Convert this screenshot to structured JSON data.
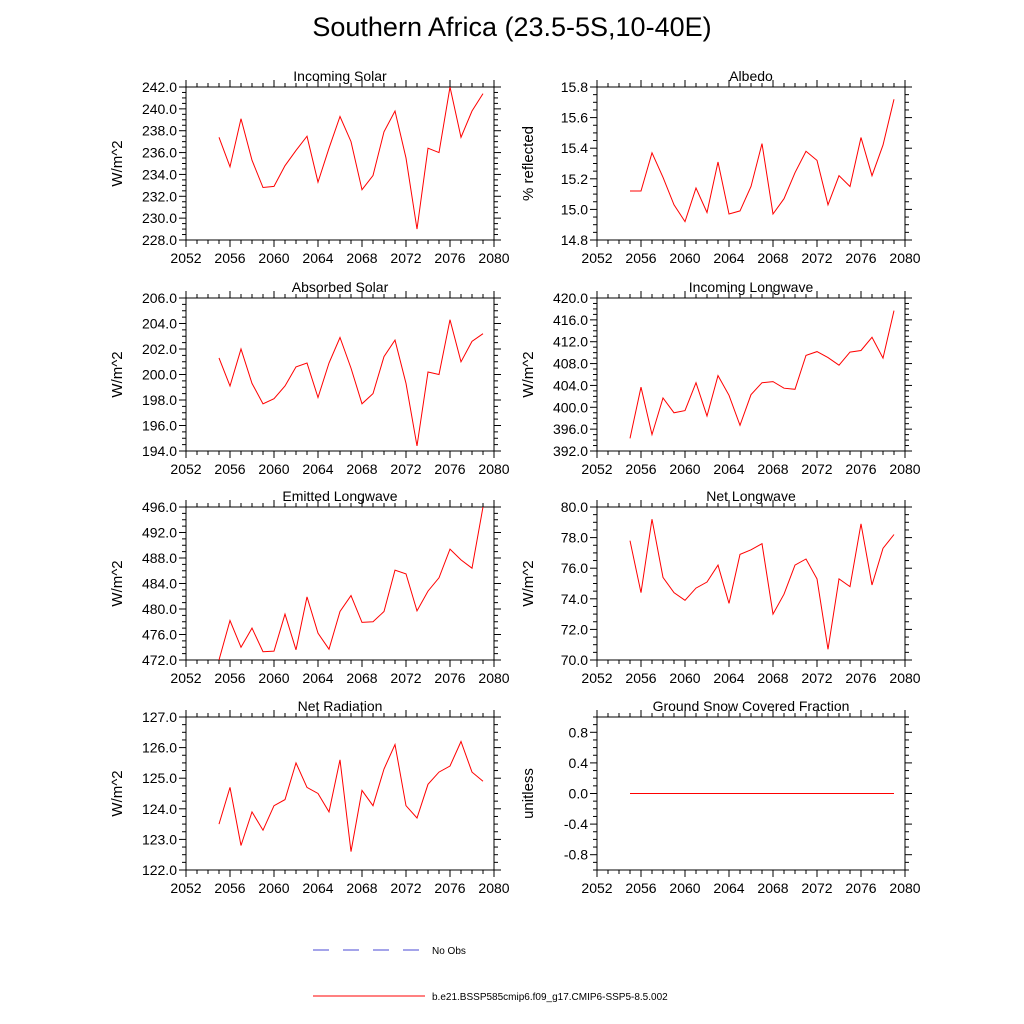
{
  "figure": {
    "title": "Southern Africa (23.5-5S,10-40E)"
  },
  "legend": [
    {
      "label": "No Obs",
      "style": "dashed",
      "color": "#4a4ad6"
    },
    {
      "label": "b.e21.BSSP585cmip6.f09_g17.CMIP6-SSP5-8.5.002",
      "style": "solid",
      "color": "#ff0000"
    }
  ],
  "chart_data": [
    {
      "type": "line",
      "title": "Incoming Solar",
      "ylabel": "W/m^2",
      "xlabel": "",
      "xlim": [
        2052,
        2080
      ],
      "ylim": [
        228,
        242
      ],
      "xticks": [
        "2052",
        "2056",
        "2060",
        "2064",
        "2068",
        "2072",
        "2076",
        "2080"
      ],
      "yticks": [
        "228.0",
        "230.0",
        "232.0",
        "234.0",
        "236.0",
        "238.0",
        "240.0",
        "242.0"
      ],
      "x": [
        2055,
        2056,
        2057,
        2058,
        2059,
        2060,
        2061,
        2062,
        2063,
        2064,
        2065,
        2066,
        2067,
        2068,
        2069,
        2070,
        2071,
        2072,
        2073,
        2074,
        2075,
        2076,
        2077,
        2078,
        2079
      ],
      "series": [
        {
          "values": [
            237.4,
            234.7,
            239.1,
            235.3,
            232.8,
            232.9,
            234.8,
            236.2,
            237.5,
            233.3,
            236.4,
            239.3,
            237.0,
            232.6,
            233.9,
            237.9,
            239.8,
            235.5,
            229.0,
            236.4,
            236.0,
            242.0,
            237.4,
            239.8,
            241.4
          ],
          "color": "#ff0000"
        }
      ]
    },
    {
      "type": "line",
      "title": "Albedo",
      "ylabel": "% reflected",
      "xlabel": "",
      "xlim": [
        2052,
        2080
      ],
      "ylim": [
        14.8,
        15.8
      ],
      "xticks": [
        "2052",
        "2056",
        "2060",
        "2064",
        "2068",
        "2072",
        "2076",
        "2080"
      ],
      "yticks": [
        "14.8",
        "15.0",
        "15.2",
        "15.4",
        "15.6",
        "15.8"
      ],
      "x": [
        2055,
        2056,
        2057,
        2058,
        2059,
        2060,
        2061,
        2062,
        2063,
        2064,
        2065,
        2066,
        2067,
        2068,
        2069,
        2070,
        2071,
        2072,
        2073,
        2074,
        2075,
        2076,
        2077,
        2078,
        2079
      ],
      "series": [
        {
          "values": [
            15.12,
            15.12,
            15.37,
            15.21,
            15.03,
            14.92,
            15.14,
            14.98,
            15.31,
            14.97,
            14.99,
            15.15,
            15.43,
            14.97,
            15.07,
            15.24,
            15.38,
            15.32,
            15.03,
            15.22,
            15.15,
            15.47,
            15.22,
            15.42,
            15.72
          ],
          "color": "#ff0000"
        }
      ]
    },
    {
      "type": "line",
      "title": "Absorbed Solar",
      "ylabel": "W/m^2",
      "xlabel": "",
      "xlim": [
        2052,
        2080
      ],
      "ylim": [
        194,
        206
      ],
      "xticks": [
        "2052",
        "2056",
        "2060",
        "2064",
        "2068",
        "2072",
        "2076",
        "2080"
      ],
      "yticks": [
        "194.0",
        "196.0",
        "198.0",
        "200.0",
        "202.0",
        "204.0",
        "206.0"
      ],
      "x": [
        2055,
        2056,
        2057,
        2058,
        2059,
        2060,
        2061,
        2062,
        2063,
        2064,
        2065,
        2066,
        2067,
        2068,
        2069,
        2070,
        2071,
        2072,
        2073,
        2074,
        2075,
        2076,
        2077,
        2078,
        2079
      ],
      "series": [
        {
          "values": [
            201.3,
            199.1,
            202.0,
            199.3,
            197.7,
            198.1,
            199.1,
            200.6,
            200.9,
            198.2,
            200.9,
            202.9,
            200.5,
            197.7,
            198.5,
            201.4,
            202.7,
            199.3,
            194.4,
            200.2,
            200.0,
            204.3,
            201.0,
            202.6,
            203.2
          ],
          "color": "#ff0000"
        }
      ]
    },
    {
      "type": "line",
      "title": "Incoming Longwave",
      "ylabel": "W/m^2",
      "xlabel": "",
      "xlim": [
        2052,
        2080
      ],
      "ylim": [
        392,
        420
      ],
      "xticks": [
        "2052",
        "2056",
        "2060",
        "2064",
        "2068",
        "2072",
        "2076",
        "2080"
      ],
      "yticks": [
        "392.0",
        "396.0",
        "400.0",
        "404.0",
        "408.0",
        "412.0",
        "416.0",
        "420.0"
      ],
      "x": [
        2055,
        2056,
        2057,
        2058,
        2059,
        2060,
        2061,
        2062,
        2063,
        2064,
        2065,
        2066,
        2067,
        2068,
        2069,
        2070,
        2071,
        2072,
        2073,
        2074,
        2075,
        2076,
        2077,
        2078,
        2079
      ],
      "series": [
        {
          "values": [
            394.3,
            403.7,
            395.0,
            401.7,
            399.0,
            399.4,
            404.5,
            398.4,
            405.8,
            402.2,
            396.7,
            402.3,
            404.5,
            404.7,
            403.5,
            403.3,
            409.5,
            410.2,
            409.1,
            407.7,
            410.1,
            410.4,
            412.8,
            409.0,
            417.7
          ],
          "color": "#ff0000"
        }
      ]
    },
    {
      "type": "line",
      "title": "Emitted Longwave",
      "ylabel": "W/m^2",
      "xlabel": "",
      "xlim": [
        2052,
        2080
      ],
      "ylim": [
        472,
        496
      ],
      "xticks": [
        "2052",
        "2056",
        "2060",
        "2064",
        "2068",
        "2072",
        "2076",
        "2080"
      ],
      "yticks": [
        "472.0",
        "476.0",
        "480.0",
        "484.0",
        "488.0",
        "492.0",
        "496.0"
      ],
      "x": [
        2055,
        2056,
        2057,
        2058,
        2059,
        2060,
        2061,
        2062,
        2063,
        2064,
        2065,
        2066,
        2067,
        2068,
        2069,
        2070,
        2071,
        2072,
        2073,
        2074,
        2075,
        2076,
        2077,
        2078,
        2079
      ],
      "series": [
        {
          "values": [
            472.0,
            478.2,
            474.0,
            477.0,
            473.3,
            473.4,
            479.2,
            473.6,
            481.9,
            476.2,
            473.7,
            479.6,
            482.1,
            477.9,
            478.0,
            479.6,
            486.1,
            485.5,
            479.7,
            482.8,
            484.9,
            489.4,
            487.7,
            486.4,
            496.0
          ],
          "color": "#ff0000"
        }
      ]
    },
    {
      "type": "line",
      "title": "Net Longwave",
      "ylabel": "W/m^2",
      "xlabel": "",
      "xlim": [
        2052,
        2080
      ],
      "ylim": [
        70,
        80
      ],
      "xticks": [
        "2052",
        "2056",
        "2060",
        "2064",
        "2068",
        "2072",
        "2076",
        "2080"
      ],
      "yticks": [
        "70.0",
        "72.0",
        "74.0",
        "76.0",
        "78.0",
        "80.0"
      ],
      "x": [
        2055,
        2056,
        2057,
        2058,
        2059,
        2060,
        2061,
        2062,
        2063,
        2064,
        2065,
        2066,
        2067,
        2068,
        2069,
        2070,
        2071,
        2072,
        2073,
        2074,
        2075,
        2076,
        2077,
        2078,
        2079
      ],
      "series": [
        {
          "values": [
            77.8,
            74.4,
            79.2,
            75.4,
            74.4,
            73.9,
            74.7,
            75.1,
            76.2,
            73.7,
            76.9,
            77.2,
            77.6,
            73.0,
            74.3,
            76.2,
            76.6,
            75.3,
            70.7,
            75.3,
            74.8,
            78.9,
            74.9,
            77.3,
            78.2
          ],
          "color": "#ff0000"
        }
      ]
    },
    {
      "type": "line",
      "title": "Net Radiation",
      "ylabel": "W/m^2",
      "xlabel": "",
      "xlim": [
        2052,
        2080
      ],
      "ylim": [
        122,
        127
      ],
      "xticks": [
        "2052",
        "2056",
        "2060",
        "2064",
        "2068",
        "2072",
        "2076",
        "2080"
      ],
      "yticks": [
        "122.0",
        "123.0",
        "124.0",
        "125.0",
        "126.0",
        "127.0"
      ],
      "x": [
        2055,
        2056,
        2057,
        2058,
        2059,
        2060,
        2061,
        2062,
        2063,
        2064,
        2065,
        2066,
        2067,
        2068,
        2069,
        2070,
        2071,
        2072,
        2073,
        2074,
        2075,
        2076,
        2077,
        2078,
        2079
      ],
      "series": [
        {
          "values": [
            123.5,
            124.7,
            122.8,
            123.9,
            123.3,
            124.1,
            124.3,
            125.5,
            124.7,
            124.5,
            123.9,
            125.6,
            122.6,
            124.6,
            124.1,
            125.3,
            126.1,
            124.1,
            123.7,
            124.8,
            125.2,
            125.4,
            126.2,
            125.2,
            124.9
          ],
          "color": "#ff0000"
        }
      ]
    },
    {
      "type": "line",
      "title": "Ground Snow Covered Fraction",
      "ylabel": "unitless",
      "xlabel": "",
      "xlim": [
        2052,
        2080
      ],
      "ylim": [
        -1.0,
        1.0
      ],
      "xticks": [
        "2052",
        "2056",
        "2060",
        "2064",
        "2068",
        "2072",
        "2076",
        "2080"
      ],
      "yticks": [
        "-0.8",
        "-0.4",
        "0.0",
        "0.4",
        "0.8"
      ],
      "yticks_values": [
        -0.8,
        -0.4,
        0.0,
        0.4,
        0.8
      ],
      "x": [
        2055,
        2056,
        2057,
        2058,
        2059,
        2060,
        2061,
        2062,
        2063,
        2064,
        2065,
        2066,
        2067,
        2068,
        2069,
        2070,
        2071,
        2072,
        2073,
        2074,
        2075,
        2076,
        2077,
        2078,
        2079
      ],
      "series": [
        {
          "values": [
            0,
            0,
            0,
            0,
            0,
            0,
            0,
            0,
            0,
            0,
            0,
            0,
            0,
            0,
            0,
            0,
            0,
            0,
            0,
            0,
            0,
            0,
            0,
            0,
            0
          ],
          "color": "#ff0000"
        }
      ]
    }
  ]
}
